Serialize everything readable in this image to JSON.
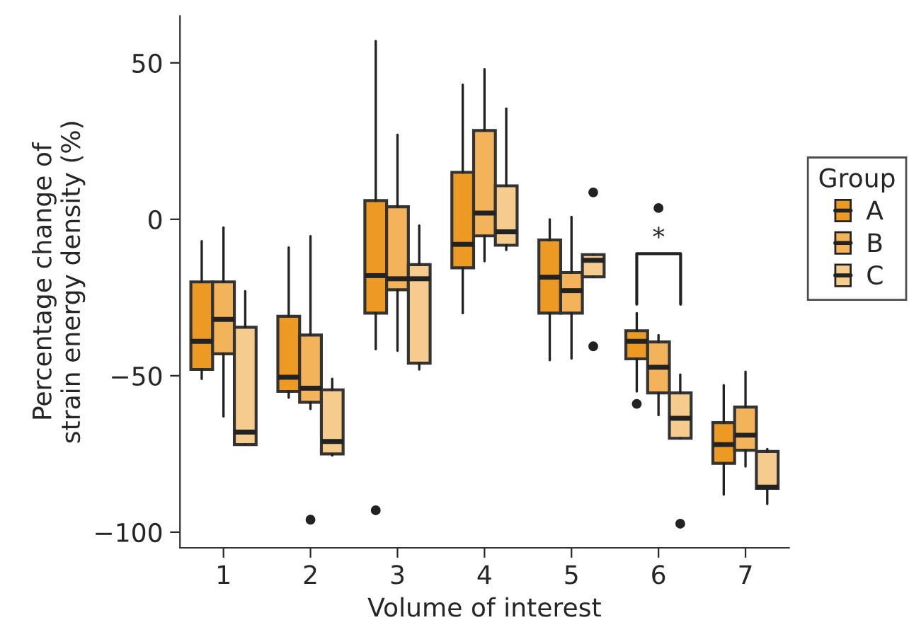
{
  "chart_data": {
    "type": "box",
    "xlabel": "Volume of interest",
    "ylabel": "Percentage change of\nstrain energy density (%)",
    "legend_title": "Group",
    "legend": "right",
    "grid": false,
    "categories": [
      "1",
      "2",
      "3",
      "4",
      "5",
      "6",
      "7"
    ],
    "ylim": [
      -105,
      65
    ],
    "yticks": [
      {
        "value": -100,
        "label": "−100"
      },
      {
        "value": -50,
        "label": "−50"
      },
      0,
      50
    ],
    "annotations": [
      "*"
    ],
    "series": [
      {
        "name": "A",
        "color": "#ec9a23",
        "boxes": [
          {
            "low": -51,
            "q1": -48,
            "median": -39,
            "q3": -20,
            "high": -7
          },
          {
            "low": -57,
            "q1": -55,
            "median": -50.5,
            "q3": -31,
            "high": -9
          },
          {
            "low": -41.5,
            "q1": -30,
            "median": -18,
            "q3": 6,
            "high": 57,
            "outliers": [
              -93
            ]
          },
          {
            "low": -30,
            "q1": -15.5,
            "median": -8,
            "q3": 15,
            "high": 43
          },
          {
            "low": -45,
            "q1": -30,
            "median": -18.5,
            "q3": -6.6,
            "high": 0
          },
          {
            "low": -55,
            "q1": -44.6,
            "median": -39,
            "q3": -35.6,
            "high": -30,
            "outliers": [
              -59
            ]
          },
          {
            "low": -88,
            "q1": -78,
            "median": -72,
            "q3": -65,
            "high": -53
          }
        ]
      },
      {
        "name": "B",
        "color": "#f2b35a",
        "boxes": [
          {
            "low": -63,
            "q1": -43,
            "median": -32,
            "q3": -20,
            "high": -2.6
          },
          {
            "low": -60.6,
            "q1": -58.5,
            "median": -54,
            "q3": -37,
            "high": -5.4,
            "outliers": [
              -96
            ]
          },
          {
            "low": -42,
            "q1": -22.5,
            "median": -19,
            "q3": 4,
            "high": 27
          },
          {
            "low": -13.4,
            "q1": -5.3,
            "median": 2,
            "q3": 28.4,
            "high": 48
          },
          {
            "low": -44.5,
            "q1": -30,
            "median": -22.8,
            "q3": -17,
            "high": 0.8
          },
          {
            "low": -62.6,
            "q1": -55.5,
            "median": -47.3,
            "q3": -39.2,
            "high": -37,
            "outliers": [
              3.6
            ]
          },
          {
            "low": -79,
            "q1": -73.8,
            "median": -69,
            "q3": -60,
            "high": -48.7
          }
        ]
      },
      {
        "name": "C",
        "color": "#f6cb8e",
        "boxes": [
          {
            "low": -72,
            "q1": -72,
            "median": -68,
            "q3": -34.5,
            "high": -23
          },
          {
            "low": -75.5,
            "q1": -75,
            "median": -71,
            "q3": -54.5,
            "high": -51
          },
          {
            "low": -48,
            "q1": -46,
            "median": -19,
            "q3": -14.5,
            "high": -2
          },
          {
            "low": -9.8,
            "q1": -8.3,
            "median": -4,
            "q3": 10.7,
            "high": 35.4
          },
          {
            "low": -18.4,
            "q1": -18.4,
            "median": -13.1,
            "q3": -11.3,
            "high": -11.3,
            "outliers": [
              8.6,
              -40.6
            ]
          },
          {
            "low": -70,
            "q1": -70,
            "median": -63.6,
            "q3": -55.5,
            "high": -49.6,
            "outliers": [
              -97.3
            ]
          },
          {
            "low": -91,
            "q1": -86,
            "median": -85.6,
            "q3": -74.2,
            "high": -73.4
          }
        ]
      }
    ]
  }
}
